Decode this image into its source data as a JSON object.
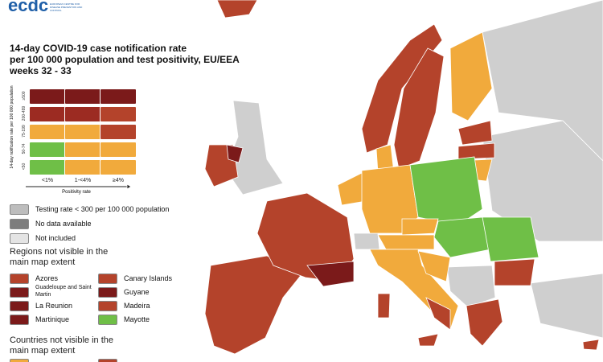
{
  "logo": {
    "name": "ecdc",
    "subtitle": "EUROPEAN CENTRE FOR DISEASE PREVENTION AND CONTROL"
  },
  "title": [
    "14-day COVID-19 case notification rate",
    "per 100 000 population and test positivity, EU/EEA",
    "weeks 32 - 33"
  ],
  "matrix": {
    "y_label": "14-day notification rate per 100 000 population",
    "row_labels": [
      "≥500",
      "200-499",
      "75-199",
      "50-74",
      "<50"
    ],
    "col_labels": [
      "<1%",
      "1-<4%",
      "≥4%"
    ],
    "x_label": "Positivity rate"
  },
  "legend": {
    "status": [
      "Testing rate < 300 per 100 000 population",
      "No data available",
      "Not included"
    ],
    "regions_title": "Regions not visible in the main map extent",
    "regions": [
      "Azores",
      "Canary Islands",
      "Guadeloupe and Saint Martin",
      "Guyane",
      "La Reunion",
      "Madeira",
      "Martinique",
      "Mayotte"
    ],
    "countries_title": "Countries not visible in the main map extent"
  }
}
